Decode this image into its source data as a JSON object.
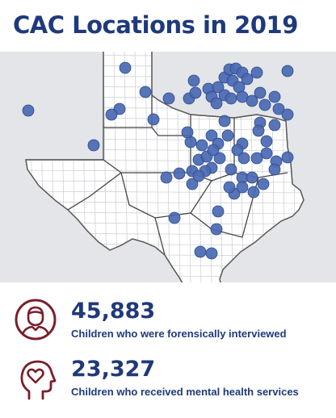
{
  "title": "CAC Locations in 2019",
  "colors": {
    "title": "#1f3a7a",
    "marker_fill": "#4a69b3",
    "marker_stroke": "#2e4a8c",
    "icon": "#7a1f2b",
    "map_background": "#e3e5e8",
    "state_fill": "#ffffff",
    "county_lines": "#c9ccd1",
    "region_lines": "#444444"
  },
  "map": {
    "region": "Texas",
    "marker": "cac-location-dot"
  },
  "stats": [
    {
      "icon": "person-icon",
      "number": "45,883",
      "label": "Children who were forensically interviewed"
    },
    {
      "icon": "head-heart-icon",
      "number": "23,327",
      "label": "Children who received mental health services"
    }
  ]
}
